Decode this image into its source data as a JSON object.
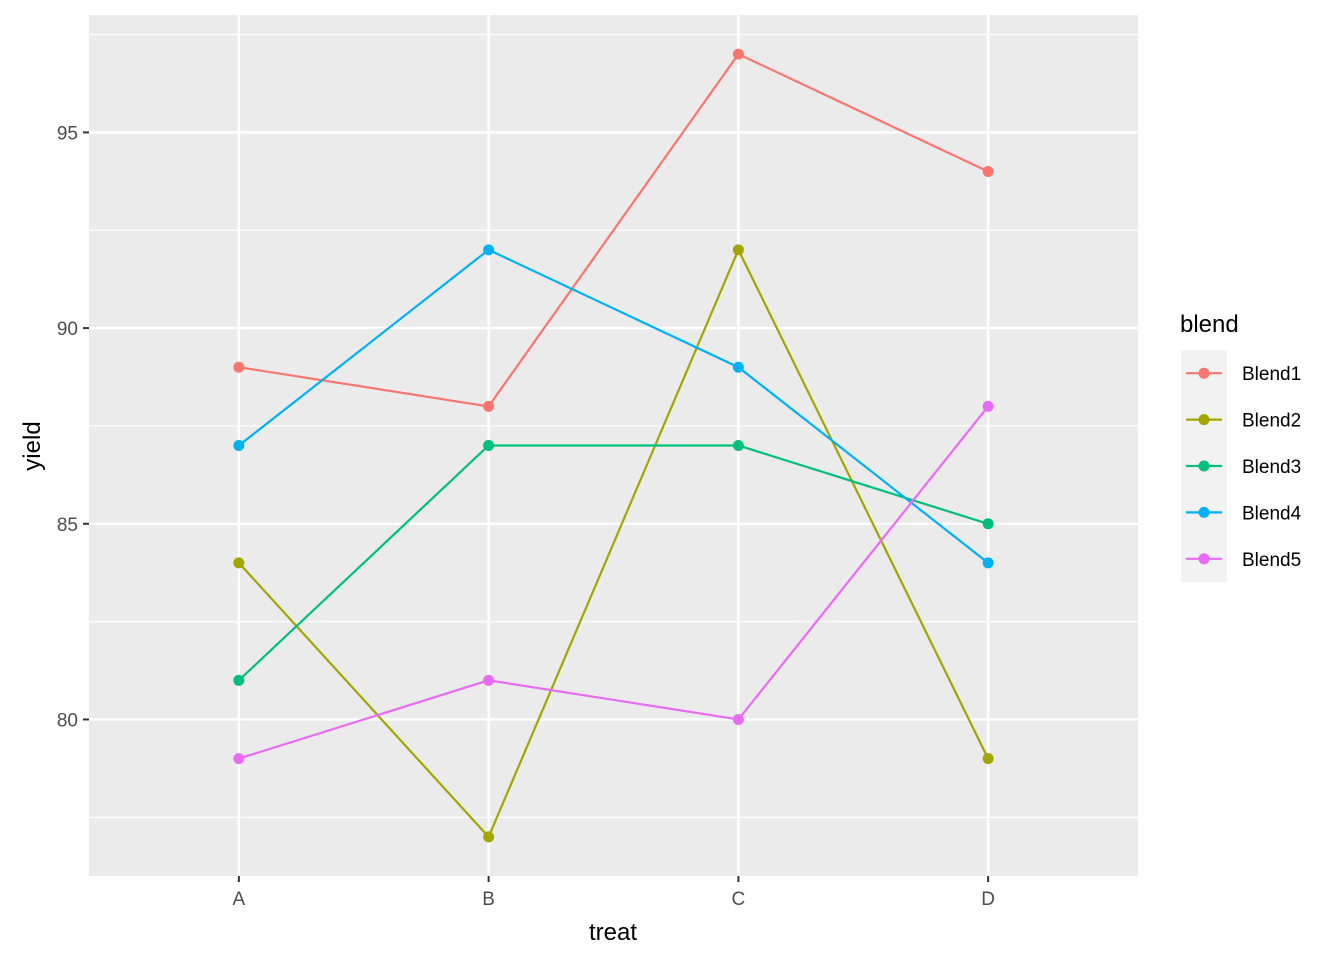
{
  "chart_data": {
    "type": "line",
    "xlabel": "treat",
    "ylabel": "yield",
    "categories": [
      "A",
      "B",
      "C",
      "D"
    ],
    "ylim": [
      76,
      98
    ],
    "yticks": [
      80,
      85,
      90,
      95
    ],
    "grid": true,
    "legend": {
      "title": "blend",
      "placement": "right"
    },
    "series": [
      {
        "name": "Blend1",
        "color": "#F8766D",
        "values": [
          89,
          88,
          97,
          94
        ]
      },
      {
        "name": "Blend2",
        "color": "#A3A500",
        "values": [
          84,
          77,
          92,
          79
        ]
      },
      {
        "name": "Blend3",
        "color": "#00BF7D",
        "values": [
          81,
          87,
          87,
          85
        ]
      },
      {
        "name": "Blend4",
        "color": "#00B0F6",
        "values": [
          87,
          92,
          89,
          84
        ]
      },
      {
        "name": "Blend5",
        "color": "#E76BF3",
        "values": [
          79,
          81,
          80,
          88
        ]
      }
    ],
    "background": "#EBEBEB",
    "gridColor": "#FFFFFF"
  }
}
